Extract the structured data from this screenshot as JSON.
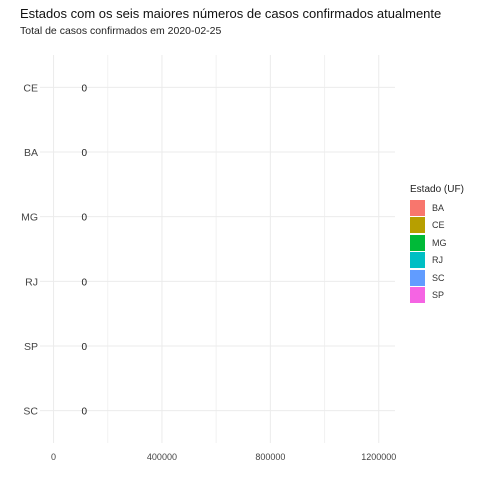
{
  "chart_data": {
    "type": "bar",
    "orientation": "horizontal",
    "title": "Estados com os seis maiores números de casos confirmados atualmente",
    "subtitle": "Total de casos confirmados em 2020-02-25",
    "xlabel": "",
    "ylabel": "",
    "categories": [
      "CE",
      "BA",
      "MG",
      "RJ",
      "SP",
      "SC"
    ],
    "values": [
      0,
      0,
      0,
      0,
      0,
      0
    ],
    "value_labels": [
      "0",
      "0",
      "0",
      "0",
      "0",
      "0"
    ],
    "xlim": [
      -50000,
      1260000
    ],
    "x_ticks": [
      0,
      400000,
      800000,
      1200000
    ],
    "x_tick_labels": [
      "0",
      "400000",
      "800000",
      "1200000"
    ],
    "grid": true,
    "legend": {
      "title": "Estado (UF)",
      "placement": "right",
      "entries": [
        {
          "label": "BA",
          "color": "#F8766D"
        },
        {
          "label": "CE",
          "color": "#B79F00"
        },
        {
          "label": "MG",
          "color": "#00BA38"
        },
        {
          "label": "RJ",
          "color": "#00BFC4"
        },
        {
          "label": "SC",
          "color": "#619CFF"
        },
        {
          "label": "SP",
          "color": "#F564E3"
        }
      ]
    }
  }
}
